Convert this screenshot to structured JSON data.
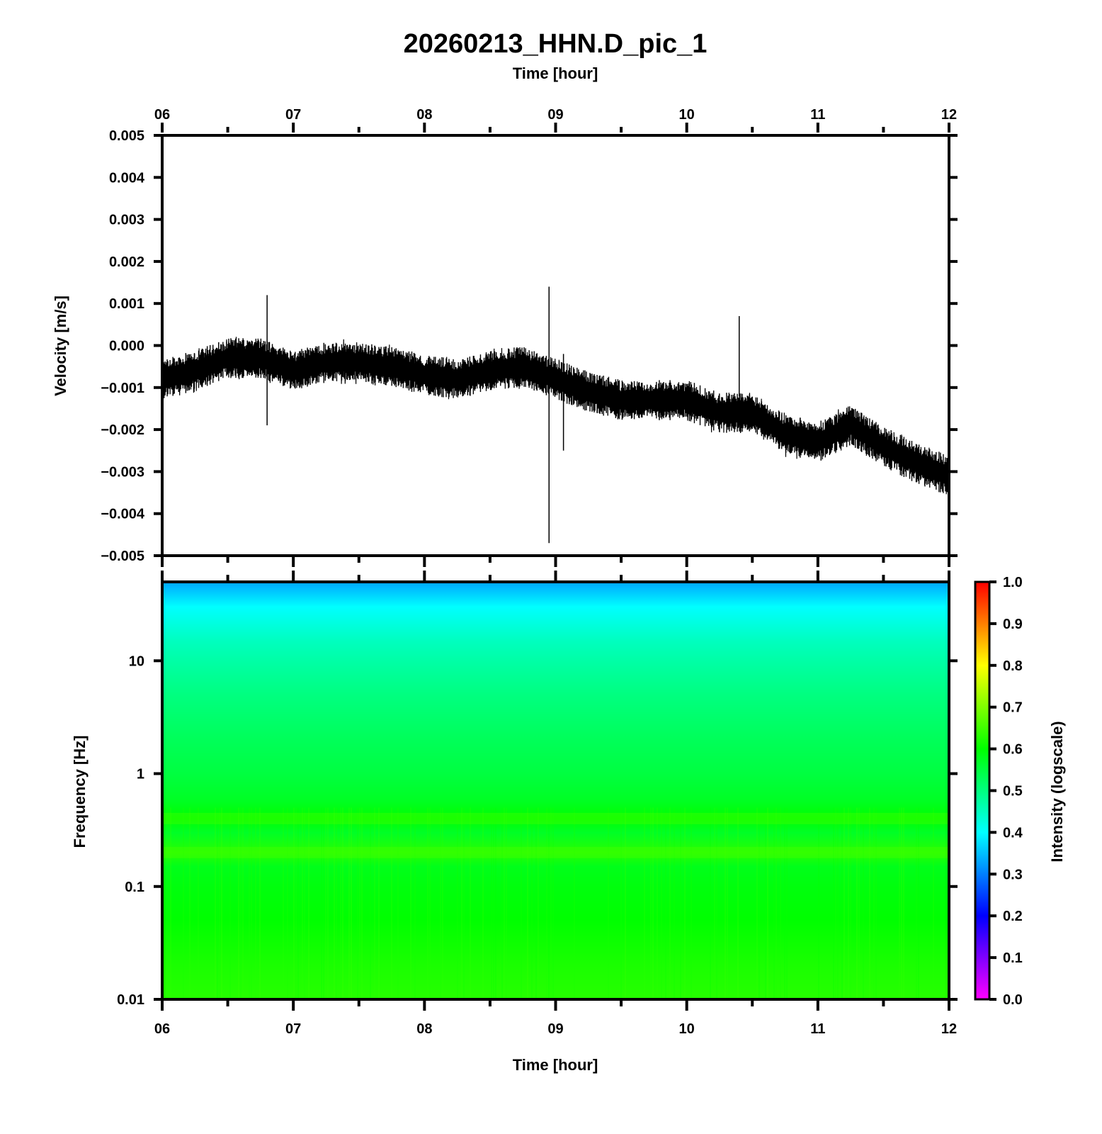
{
  "title": "20260213_HHN.D_pic_1",
  "top_axis_label": "Time [hour]",
  "bottom_axis_label": "Time [hour]",
  "colors": {
    "trace": "#000000",
    "frame": "#000000",
    "background": "#ffffff"
  },
  "chart_data": [
    {
      "type": "line",
      "name": "waveform",
      "xlabel": "Time [hour]",
      "ylabel": "Velocity [m/s]",
      "xlim": [
        6,
        12
      ],
      "ylim": [
        -0.005,
        0.005
      ],
      "x_tick_labels": [
        "06",
        "07",
        "08",
        "09",
        "10",
        "11",
        "12"
      ],
      "y_tick_labels": [
        "0.005",
        "0.004",
        "0.003",
        "0.002",
        "0.001",
        "0.000",
        "−0.001",
        "−0.002",
        "−0.003",
        "−0.004",
        "−0.005"
      ],
      "y_tick_values": [
        0.005,
        0.004,
        0.003,
        0.002,
        0.001,
        0.0,
        -0.001,
        -0.002,
        -0.003,
        -0.004,
        -0.005
      ],
      "envelope": {
        "x": [
          6.0,
          6.25,
          6.5,
          6.75,
          7.0,
          7.25,
          7.5,
          7.75,
          8.0,
          8.25,
          8.5,
          8.75,
          9.0,
          9.25,
          9.5,
          9.75,
          10.0,
          10.25,
          10.5,
          10.75,
          11.0,
          11.25,
          11.5,
          11.75,
          12.0
        ],
        "center": [
          -0.0008,
          -0.0006,
          -0.0003,
          -0.0003,
          -0.0006,
          -0.0004,
          -0.0004,
          -0.0005,
          -0.0007,
          -0.0008,
          -0.0006,
          -0.0005,
          -0.0008,
          -0.0011,
          -0.0013,
          -0.0013,
          -0.0013,
          -0.0016,
          -0.0016,
          -0.0021,
          -0.0023,
          -0.0019,
          -0.0024,
          -0.0028,
          -0.0031
        ],
        "half_width": [
          0.0006,
          0.0006,
          0.0006,
          0.0006,
          0.0006,
          0.0006,
          0.0006,
          0.0006,
          0.0006,
          0.0006,
          0.0006,
          0.0006,
          0.0006,
          0.0006,
          0.0006,
          0.0006,
          0.0006,
          0.0006,
          0.0006,
          0.0006,
          0.0006,
          0.0006,
          0.0006,
          0.0006,
          0.0006
        ]
      },
      "spikes": [
        {
          "x": 6.8,
          "max": 0.0012,
          "min": -0.0019
        },
        {
          "x": 8.95,
          "max": 0.0014,
          "min": -0.0047
        },
        {
          "x": 9.06,
          "max": -0.0002,
          "min": -0.0025
        },
        {
          "x": 10.4,
          "max": 0.0007,
          "min": -0.0012
        }
      ]
    },
    {
      "type": "heatmap",
      "name": "spectrogram",
      "xlabel": "Time [hour]",
      "ylabel": "Frequency [Hz]",
      "xlim": [
        6,
        12
      ],
      "ylim": [
        0.01,
        50
      ],
      "y_scale": "log",
      "x_tick_labels": [
        "06",
        "07",
        "08",
        "09",
        "10",
        "11",
        "12"
      ],
      "y_tick_labels": [
        "10",
        "1",
        "0.1",
        "0.01"
      ],
      "y_tick_values": [
        10,
        1,
        0.1,
        0.01
      ],
      "intensity_profile": {
        "frequency": [
          50,
          40,
          30,
          20,
          15,
          10,
          5,
          2,
          1,
          0.6,
          0.4,
          0.3,
          0.2,
          0.15,
          0.1,
          0.05,
          0.02,
          0.01
        ],
        "intensity": [
          0.33,
          0.36,
          0.4,
          0.43,
          0.45,
          0.47,
          0.5,
          0.53,
          0.55,
          0.57,
          0.6,
          0.57,
          0.63,
          0.58,
          0.59,
          0.6,
          0.62,
          0.63
        ]
      },
      "colorbar": {
        "label": "Intensity (logscale)",
        "range": [
          0.0,
          1.0
        ],
        "tick_labels": [
          "1.0",
          "0.9",
          "0.8",
          "0.7",
          "0.6",
          "0.5",
          "0.4",
          "0.3",
          "0.2",
          "0.1",
          "0.0"
        ],
        "tick_values": [
          1.0,
          0.9,
          0.8,
          0.7,
          0.6,
          0.5,
          0.4,
          0.3,
          0.2,
          0.1,
          0.0
        ],
        "colormap": [
          "#ff00ff",
          "#0000ff",
          "#00ffff",
          "#00ff00",
          "#ffff00",
          "#ff0000"
        ]
      }
    }
  ]
}
